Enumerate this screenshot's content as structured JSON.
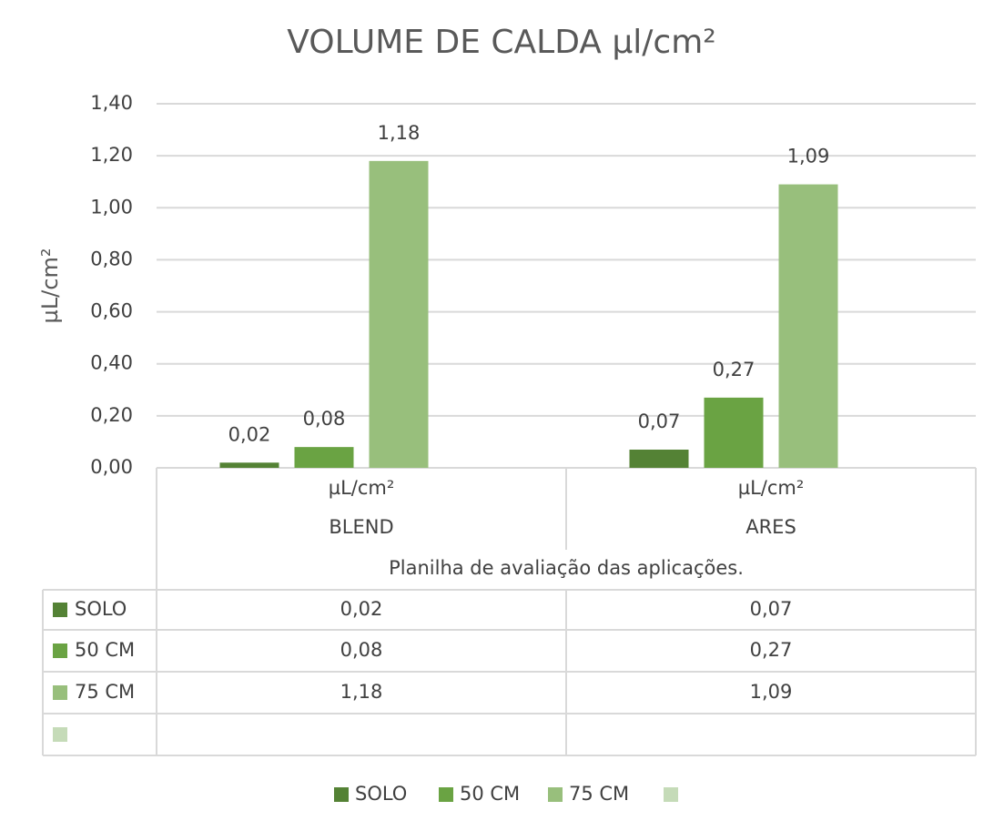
{
  "chart_data": {
    "type": "bar",
    "title": "VOLUME DE CALDA µl/cm²",
    "y_label": "µL/cm²",
    "categories": [
      "BLEND",
      "ARES"
    ],
    "category_sublabels": [
      "µL/cm²",
      "µL/cm²"
    ],
    "category_group": "Planilha de avaliação das aplicações.",
    "series": [
      {
        "name": "SOLO",
        "color": "#548235",
        "values": [
          0.02,
          0.07
        ],
        "value_labels": [
          "0,02",
          "0,07"
        ]
      },
      {
        "name": "50 CM",
        "color": "#6aa343",
        "values": [
          0.08,
          0.27
        ],
        "value_labels": [
          "0,08",
          "0,27"
        ]
      },
      {
        "name": "75 CM",
        "color": "#98bf7c",
        "values": [
          1.18,
          1.09
        ],
        "value_labels": [
          "1,18",
          "1,09"
        ]
      },
      {
        "name": null,
        "color": "#c5dbb8",
        "values": [
          null,
          null
        ]
      }
    ],
    "ylim": [
      0,
      1.4
    ],
    "yticks": [
      {
        "value": 0,
        "label": "0,00"
      },
      {
        "value": 0.2,
        "label": "0,20"
      },
      {
        "value": 0.4,
        "label": "0,40"
      },
      {
        "value": 0.6,
        "label": "0,60"
      },
      {
        "value": 0.8,
        "label": "0,80"
      },
      {
        "value": 1.0,
        "label": "1,00"
      },
      {
        "value": 1.2,
        "label": "1,20"
      },
      {
        "value": 1.4,
        "label": "1,40"
      }
    ],
    "grid": true,
    "data_table": true,
    "legend": "bottom"
  }
}
